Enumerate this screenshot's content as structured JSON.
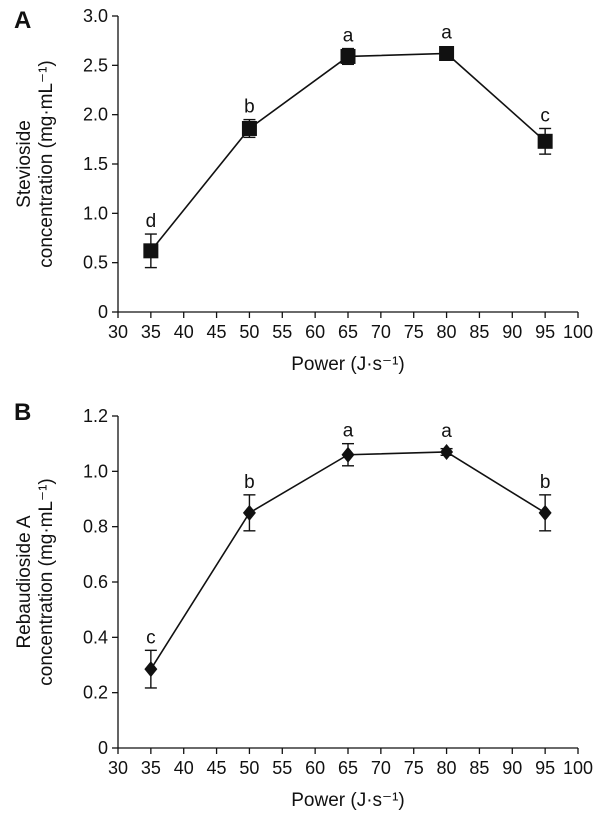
{
  "chart_data": [
    {
      "type": "scatter",
      "panel_label": "A",
      "marker": "square",
      "ylabel_lines": [
        "Stevioside",
        "concentration (mg·mL⁻¹)"
      ],
      "xlabel": "Power (J·s⁻¹)",
      "xlim": [
        30,
        100
      ],
      "ylim": [
        0,
        3.0
      ],
      "xticks": [
        30,
        35,
        40,
        45,
        50,
        55,
        60,
        65,
        70,
        75,
        80,
        85,
        90,
        95,
        100
      ],
      "yticks": [
        "0",
        "0.5",
        "1.0",
        "1.5",
        "2.0",
        "2.5",
        "3.0"
      ],
      "x": [
        35,
        50,
        65,
        80,
        95
      ],
      "y": [
        0.62,
        1.86,
        2.59,
        2.62,
        1.73
      ],
      "err": [
        0.17,
        0.09,
        0.08,
        0.05,
        0.13
      ],
      "labels": [
        "d",
        "b",
        "a",
        "a",
        "c"
      ]
    },
    {
      "type": "scatter",
      "panel_label": "B",
      "marker": "diamond",
      "ylabel_lines": [
        "Rebaudioside A",
        "concentration (mg·mL⁻¹)"
      ],
      "xlabel": "Power (J·s⁻¹)",
      "xlim": [
        30,
        100
      ],
      "ylim": [
        0,
        1.2
      ],
      "xticks": [
        30,
        35,
        40,
        45,
        50,
        55,
        60,
        65,
        70,
        75,
        80,
        85,
        90,
        95,
        100
      ],
      "yticks": [
        "0",
        "0.2",
        "0.4",
        "0.6",
        "0.8",
        "1.0",
        "1.2"
      ],
      "x": [
        35,
        50,
        65,
        80,
        95
      ],
      "y": [
        0.285,
        0.85,
        1.06,
        1.07,
        0.85
      ],
      "err": [
        0.068,
        0.065,
        0.04,
        0.012,
        0.065
      ],
      "labels": [
        "c",
        "b",
        "a",
        "a",
        "b"
      ]
    }
  ]
}
